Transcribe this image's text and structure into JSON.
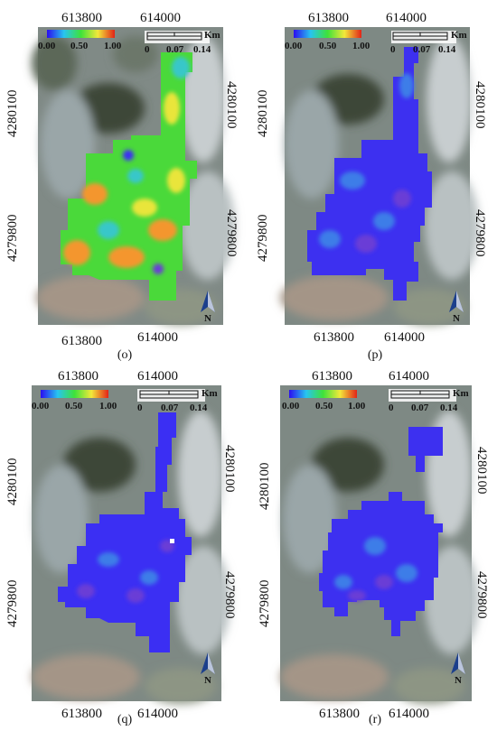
{
  "panels": [
    {
      "id": "o",
      "caption": "(o)",
      "top_ticks": [
        "613800",
        "614000"
      ],
      "bottom_ticks": [
        "613800",
        "614000"
      ],
      "left_tick": "4280100",
      "left_tick2": "4279800",
      "right_tick": "4280100",
      "right_tick2": "4279800",
      "legend": {
        "min": "0.00",
        "mid": "0.50",
        "max": "1.00"
      },
      "scale": {
        "unit": "Km",
        "labels": [
          "0",
          "0.07",
          "0.14"
        ]
      },
      "north_label": "N",
      "dominant_class": "green-mixed"
    },
    {
      "id": "p",
      "caption": "(p)",
      "top_ticks": [
        "613800",
        "614000"
      ],
      "bottom_ticks": [
        "613800",
        "614000"
      ],
      "left_tick": "4280100",
      "left_tick2": "4279800",
      "right_tick": "4280100",
      "right_tick2": "4279800",
      "legend": {
        "min": "0.00",
        "mid": "0.50",
        "max": "1.00"
      },
      "scale": {
        "unit": "Km",
        "labels": [
          "0",
          "0.07",
          "0.14"
        ]
      },
      "north_label": "N",
      "dominant_class": "blue"
    },
    {
      "id": "q",
      "caption": "(q)",
      "top_ticks": [
        "613800",
        "614000"
      ],
      "bottom_ticks": [
        "613800",
        "614000"
      ],
      "left_tick": "4280100",
      "left_tick2": "4279800",
      "right_tick": "4280100",
      "right_tick2": "4279800",
      "legend": {
        "min": "0.00",
        "mid": "0.50",
        "max": "1.00"
      },
      "scale": {
        "unit": "Km",
        "labels": [
          "0",
          "0.07",
          "0.14"
        ]
      },
      "north_label": "N",
      "dominant_class": "blue"
    },
    {
      "id": "r",
      "caption": "(r)",
      "top_ticks": [
        "613800",
        "614000"
      ],
      "bottom_ticks": [
        "613800",
        "614000"
      ],
      "left_tick": "4280100",
      "left_tick2": "4279800",
      "right_tick": "4280100",
      "right_tick2": "4279800",
      "legend": {
        "min": "0.00",
        "mid": "0.50",
        "max": "1.00"
      },
      "scale": {
        "unit": "Km",
        "labels": [
          "0",
          "0.07",
          "0.14"
        ]
      },
      "north_label": "N",
      "dominant_class": "blue"
    }
  ],
  "colors": {
    "background_imagery": "#7d8a84",
    "imagery_dark": "#4f5b52",
    "imagery_light": "#c9cfd0",
    "overlay_blue": "#3d2ef5",
    "overlay_purple": "#6a3cd6",
    "overlay_green": "#48d83a",
    "overlay_orange": "#f4962e",
    "overlay_yellow": "#e9e53a",
    "overlay_cyan": "#37c7c9"
  }
}
